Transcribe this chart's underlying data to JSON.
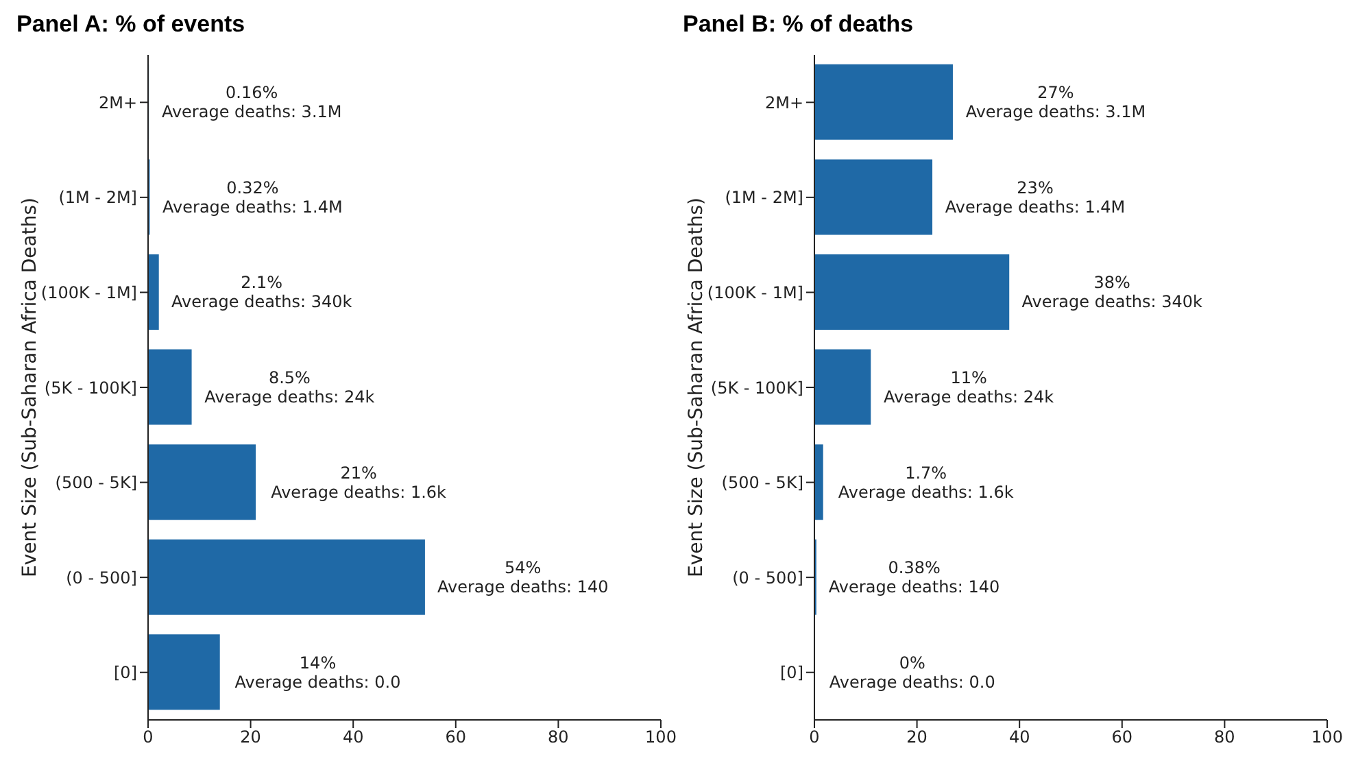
{
  "chart_data": [
    {
      "type": "bar",
      "orientation": "horizontal",
      "title": "Panel A: % of events",
      "ylabel": "Event Size (Sub-Saharan Africa Deaths)",
      "categories": [
        "2M+",
        "(1M - 2M]",
        "(100K - 1M]",
        "(5K - 100K]",
        "(500 - 5K]",
        "(0 - 500]",
        "[0]"
      ],
      "values": [
        0.16,
        0.32,
        2.1,
        8.5,
        21,
        54,
        14
      ],
      "color": "#1f69a6",
      "xlim": [
        0,
        100
      ],
      "xticks": [
        0,
        20,
        40,
        60,
        80,
        100
      ],
      "value_labels": [
        "0.16%\nAverage deaths: 3.1M",
        "0.32%\nAverage deaths: 1.4M",
        "2.1%\nAverage deaths: 340k",
        "8.5%\nAverage deaths: 24k",
        "21%\nAverage deaths: 1.6k",
        "54%\nAverage deaths: 140",
        "14%\nAverage deaths: 0.0"
      ]
    },
    {
      "type": "bar",
      "orientation": "horizontal",
      "title": "Panel B: % of deaths",
      "ylabel": "Event Size (Sub-Saharan Africa Deaths)",
      "categories": [
        "2M+",
        "(1M - 2M]",
        "(100K - 1M]",
        "(5K - 100K]",
        "(500 - 5K]",
        "(0 - 500]",
        "[0]"
      ],
      "values": [
        27,
        23,
        38,
        11,
        1.7,
        0.38,
        0
      ],
      "color": "#1f69a6",
      "xlim": [
        0,
        100
      ],
      "xticks": [
        0,
        20,
        40,
        60,
        80,
        100
      ],
      "value_labels": [
        "27%\nAverage deaths: 3.1M",
        "23%\nAverage deaths: 1.4M",
        "38%\nAverage deaths: 340k",
        "11%\nAverage deaths: 24k",
        "1.7%\nAverage deaths: 1.6k",
        "0.38%\nAverage deaths: 140",
        "0%\nAverage deaths: 0.0"
      ]
    }
  ]
}
